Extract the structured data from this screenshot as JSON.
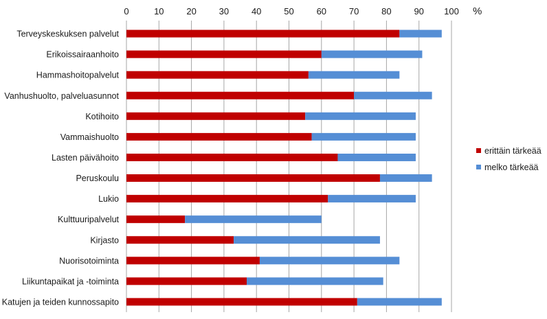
{
  "chart_data": {
    "type": "bar",
    "orientation": "horizontal",
    "stacked": true,
    "unit_label": "%",
    "xlim": [
      0,
      100
    ],
    "x_ticks": [
      0,
      10,
      20,
      30,
      40,
      50,
      60,
      70,
      80,
      90,
      100
    ],
    "x_tick_labels": [
      "0",
      "10",
      "20",
      "30",
      "40",
      "50",
      "60",
      "70",
      "80",
      "90",
      "100"
    ],
    "x_axis_position": "top",
    "grid": true,
    "legend_position": "right",
    "categories": [
      "Terveyskeskuksen palvelut",
      "Erikoissairaanhoito",
      "Hammashoitopalvelut",
      "Vanhushuolto, palveluasunnot",
      "Kotihoito",
      "Vammaishuolto",
      "Lasten päivähoito",
      "Peruskoulu",
      "Lukio",
      "Kulttuuripalvelut",
      "Kirjasto",
      "Nuorisotoiminta",
      "Liikuntapaikat ja -toiminta",
      "Katujen ja teiden kunnossapito"
    ],
    "series": [
      {
        "name": "erittäin tärkeää",
        "color": "#c00000",
        "values": [
          84,
          60,
          56,
          70,
          55,
          57,
          65,
          78,
          62,
          18,
          33,
          41,
          37,
          71
        ]
      },
      {
        "name": "melko tärkeää",
        "color": "#558ed5",
        "values": [
          13,
          31,
          28,
          24,
          34,
          32,
          24,
          16,
          27,
          42,
          45,
          43,
          42,
          26
        ]
      }
    ]
  }
}
